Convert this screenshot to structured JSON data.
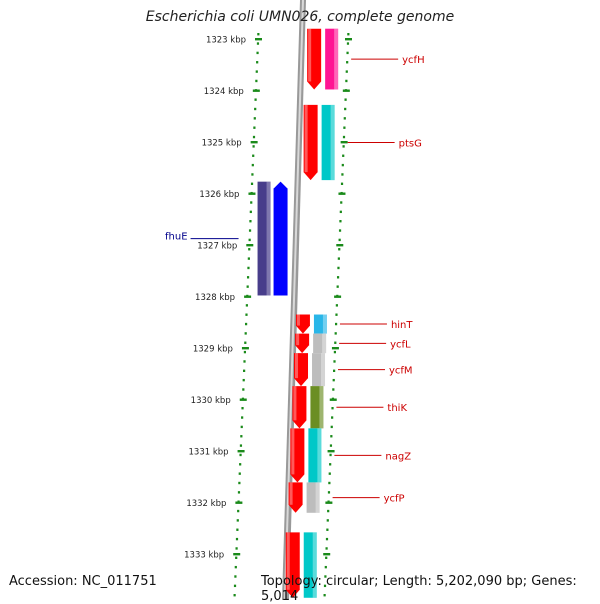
{
  "title": "Escherichia coli UMN026, complete genome",
  "accession": "Accession: NC_011751",
  "summary": "Topology: circular; Length: 5,202,090 bp; Genes: 5,014",
  "ruler": {
    "labels": [
      "1323 kbp",
      "1324 kbp",
      "1325 kbp",
      "1326 kbp",
      "1327 kbp",
      "1328 kbp",
      "1329 kbp",
      "1330 kbp",
      "1331 kbp",
      "1332 kbp",
      "1333 kbp"
    ]
  },
  "colors": {
    "gene_red": "#ff0000",
    "tick_green": "#1a8a1a",
    "label_red": "#cc0000",
    "label_blue": "#00008b",
    "backbone": "#999999",
    "purple": "#483d8b",
    "blue": "#0000ff",
    "magenta": "#ff1493",
    "cyan": "#00c8c8",
    "light_blue": "#29b6e8",
    "gray": "#bdbdbd",
    "olive": "#6b8e23"
  },
  "genes": [
    {
      "name": "ycfH",
      "strand": "+",
      "start_kbp": 1322.8,
      "end_kbp": 1323.98,
      "color": "magenta"
    },
    {
      "name": "ptsG",
      "strand": "+",
      "start_kbp": 1324.28,
      "end_kbp": 1325.74,
      "color": "cyan"
    },
    {
      "name": "fhuE",
      "strand": "-",
      "start_kbp": 1325.77,
      "end_kbp": 1327.98,
      "color": "purple"
    },
    {
      "name": "hinT",
      "strand": "+",
      "start_kbp": 1328.35,
      "end_kbp": 1328.72,
      "color": "light_blue"
    },
    {
      "name": "ycfL",
      "strand": "+",
      "start_kbp": 1328.72,
      "end_kbp": 1329.1,
      "color": "gray"
    },
    {
      "name": "ycfM",
      "strand": "+",
      "start_kbp": 1329.1,
      "end_kbp": 1329.74,
      "color": "gray"
    },
    {
      "name": "thiK",
      "strand": "+",
      "start_kbp": 1329.74,
      "end_kbp": 1330.56,
      "color": "olive"
    },
    {
      "name": "nagZ",
      "strand": "+",
      "start_kbp": 1330.56,
      "end_kbp": 1331.61,
      "color": "cyan"
    },
    {
      "name": "ycfP",
      "strand": "+",
      "start_kbp": 1331.61,
      "end_kbp": 1332.2,
      "color": "gray"
    },
    {
      "name": "",
      "strand": "+",
      "start_kbp": 1332.58,
      "end_kbp": 1333.85,
      "color": "cyan"
    }
  ]
}
